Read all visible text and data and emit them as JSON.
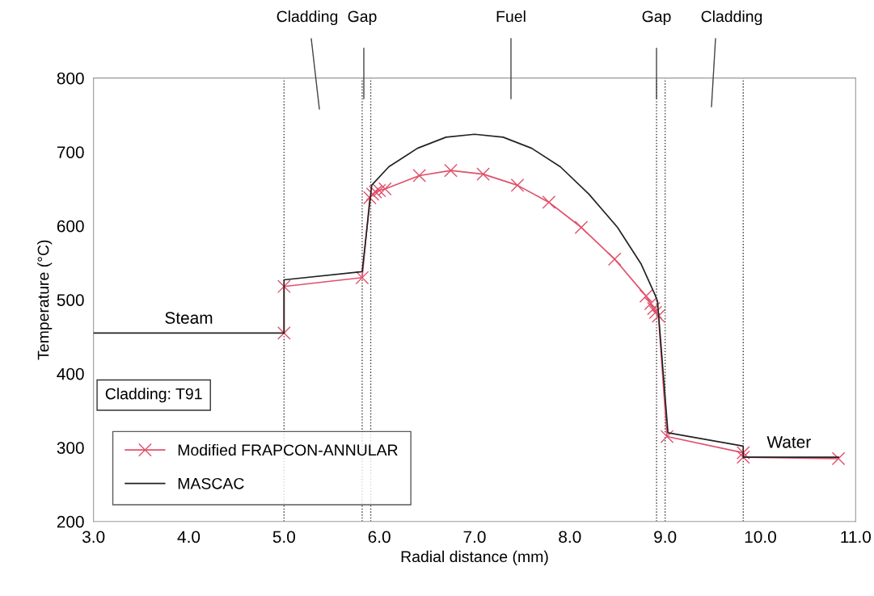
{
  "chart_data": {
    "type": "line",
    "xlabel": "Radial distance (mm)",
    "ylabel": "Temperature (°C)",
    "xlim": [
      3.0,
      11.0
    ],
    "ylim": [
      200,
      800
    ],
    "xticks": [
      {
        "value": 3,
        "label": "3.0"
      },
      {
        "value": 4,
        "label": "4.0"
      },
      {
        "value": 5,
        "label": "5.0"
      },
      {
        "value": 6,
        "label": "6.0"
      },
      {
        "value": 7,
        "label": "7.0"
      },
      {
        "value": 8,
        "label": "8.0"
      },
      {
        "value": 9,
        "label": "9.0"
      },
      {
        "value": 10,
        "label": "10.0"
      },
      {
        "value": 11,
        "label": "11.0"
      }
    ],
    "yticks": [
      200,
      300,
      400,
      500,
      600,
      700,
      800
    ],
    "grid": false,
    "legend": "bottom left",
    "series": [
      {
        "name": "Modified FRAPCON-ANNULAR",
        "color": "#e0506a",
        "marker": "cross",
        "line_style": "solid",
        "x": [
          5.0,
          5.0,
          5.82,
          5.9,
          5.93,
          5.96,
          6.0,
          6.06,
          6.42,
          6.75,
          7.09,
          7.45,
          7.78,
          8.12,
          8.47,
          8.8,
          8.85,
          8.88,
          8.9,
          8.93,
          9.02,
          9.82,
          9.82,
          10.82
        ],
        "values": [
          455,
          518,
          530,
          638,
          643,
          646,
          648,
          650,
          668,
          675,
          670,
          655,
          632,
          598,
          555,
          505,
          495,
          488,
          483,
          478,
          315,
          293,
          287,
          285
        ]
      },
      {
        "name": "MASCAC",
        "color": "#222222",
        "marker": "none",
        "line_style": "solid",
        "x": [
          3.0,
          5.0,
          5.0,
          5.82,
          5.92,
          6.1,
          6.4,
          6.7,
          7.0,
          7.3,
          7.6,
          7.9,
          8.2,
          8.5,
          8.75,
          8.9,
          8.92,
          9.03,
          9.82,
          9.82,
          10.82
        ],
        "values": [
          455,
          455,
          527,
          538,
          655,
          680,
          705,
          720,
          724,
          720,
          705,
          680,
          643,
          598,
          548,
          505,
          498,
          320,
          302,
          287,
          287
        ]
      }
    ],
    "ref_lines": [
      {
        "axis": "x",
        "value": 5.0,
        "color": "#333333",
        "line_style": "dotted"
      },
      {
        "axis": "x",
        "value": 5.82,
        "color": "#333333",
        "line_style": "dotted"
      },
      {
        "axis": "x",
        "value": 5.91,
        "color": "#333333",
        "line_style": "dotted"
      },
      {
        "axis": "x",
        "value": 8.91,
        "color": "#333333",
        "line_style": "dotted"
      },
      {
        "axis": "x",
        "value": 9.0,
        "color": "#333333",
        "line_style": "dotted"
      },
      {
        "axis": "x",
        "value": 9.82,
        "color": "#333333",
        "line_style": "dotted"
      }
    ],
    "annotations": [
      "Cladding",
      "Gap",
      "Fuel",
      "Gap",
      "Cladding",
      {
        "text": "Steam",
        "x": 4.0,
        "y": 455
      },
      {
        "text": "Water",
        "x": 10.3,
        "y": 287
      },
      "Cladding: T91"
    ]
  }
}
